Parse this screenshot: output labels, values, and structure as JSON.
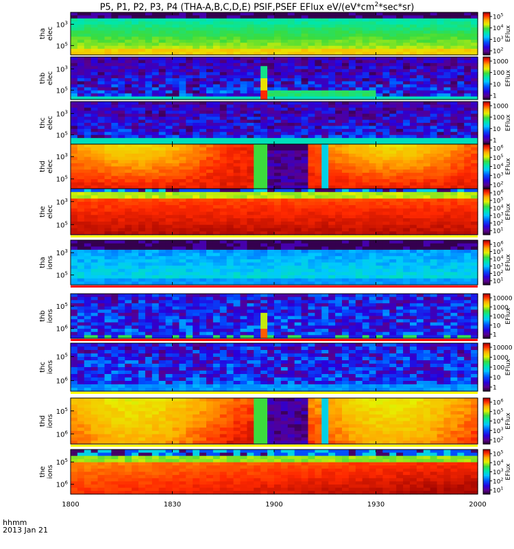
{
  "title_text": "P5, P1, P2, P3, P4 (THA-A,B,C,D,E) PSIF,PSEF EFlux eV/(eV*cm",
  "title_sup": "2",
  "title_tail": "*sec*sr)",
  "footer": {
    "time_label": "hhmm",
    "date_label": "2013 Jan 21"
  },
  "colorbar_title": "EFlux",
  "x_axis": {
    "ticks": [
      "1800",
      "1830",
      "1900",
      "1930",
      "2000"
    ],
    "range_minutes": [
      0,
      120
    ],
    "tick_minutes": [
      0,
      30,
      60,
      90,
      120
    ]
  },
  "chart_data": {
    "type": "heatmap",
    "x_unit": "hhmm",
    "panels": [
      {
        "label": [
          "tha",
          "elec"
        ],
        "yticks": [
          "10^5",
          "10^3"
        ],
        "cbar_ticks": [
          "10^5",
          "10^4",
          "10^3",
          "10^2"
        ],
        "style": "tha_elec"
      },
      {
        "label": [
          "thb",
          "elec"
        ],
        "yticks": [
          "10^5",
          "10^3"
        ],
        "cbar_ticks": [
          "1000",
          "100",
          "10",
          "1"
        ],
        "style": "thb_elec"
      },
      {
        "label": [
          "thc",
          "elec"
        ],
        "yticks": [
          "10^5",
          "10^3"
        ],
        "cbar_ticks": [
          "1000",
          "100",
          "10",
          "1"
        ],
        "style": "thc_elec"
      },
      {
        "label": [
          "thd",
          "elec"
        ],
        "yticks": [
          "10^5",
          "10^3"
        ],
        "cbar_ticks": [
          "10^6",
          "10^5",
          "10^4",
          "10^3",
          "10^2"
        ],
        "style": "thd_elec"
      },
      {
        "label": [
          "the",
          "elec"
        ],
        "yticks": [
          "10^5",
          "10^3"
        ],
        "cbar_ticks": [
          "10^6",
          "10^5",
          "10^4",
          "10^3",
          "10^2",
          "10^1"
        ],
        "style": "the_elec"
      },
      {
        "label": [
          "tha",
          "ions"
        ],
        "yticks": [
          "10^5",
          "10^3"
        ],
        "cbar_ticks": [
          "10^6",
          "10^5",
          "10^4",
          "10^3",
          "10^2",
          "10^1"
        ],
        "style": "tha_ions"
      },
      {
        "label": [
          "thb",
          "ions"
        ],
        "yticks": [
          "10^6",
          "10^5"
        ],
        "cbar_ticks": [
          "10000",
          "1000",
          "100",
          "10",
          "1"
        ],
        "style": "thb_ions"
      },
      {
        "label": [
          "thc",
          "ions"
        ],
        "yticks": [
          "10^6",
          "10^5"
        ],
        "cbar_ticks": [
          "10000",
          "1000",
          "100",
          "10",
          "1"
        ],
        "style": "thc_ions"
      },
      {
        "label": [
          "thd",
          "ions"
        ],
        "yticks": [
          "10^6",
          "10^5"
        ],
        "cbar_ticks": [
          "10^6",
          "10^5",
          "10^4",
          "10^3",
          "10^2"
        ],
        "style": "thd_ions"
      },
      {
        "label": [
          "the",
          "ions"
        ],
        "yticks": [
          "10^6",
          "10^5"
        ],
        "cbar_ticks": [
          "10^5",
          "10^4",
          "10^3",
          "10^2",
          "10^1"
        ],
        "style": "the_ions"
      }
    ]
  }
}
